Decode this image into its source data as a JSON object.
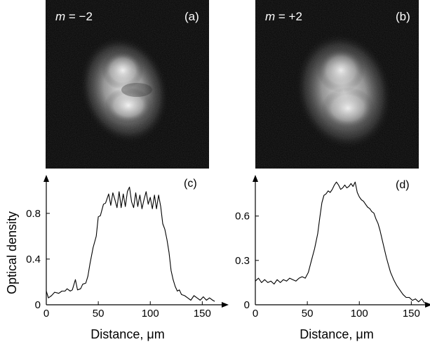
{
  "panels_images": [
    {
      "m_symbol": "m",
      "m_value": " = −2",
      "label": "(a)"
    },
    {
      "m_symbol": "m",
      "m_value": " = +2",
      "label": "(b)"
    }
  ],
  "chart_data": [
    {
      "type": "line",
      "panel_label": "(c)",
      "xlabel": "Distance, μm",
      "ylabel": "Optical density",
      "xlim": [
        0,
        170
      ],
      "ylim": [
        0,
        1.1
      ],
      "xticks": [
        0,
        50,
        100,
        150
      ],
      "yticks": [
        0,
        0.4,
        0.8
      ],
      "ytick_labels": [
        "0",
        "0.4",
        "0.8"
      ],
      "x": [
        0,
        2,
        5,
        8,
        12,
        15,
        18,
        20,
        23,
        25,
        28,
        30,
        33,
        35,
        38,
        40,
        42,
        45,
        48,
        50,
        52,
        55,
        57,
        60,
        62,
        64,
        66,
        68,
        70,
        72,
        74,
        76,
        78,
        80,
        82,
        84,
        86,
        88,
        90,
        92,
        94,
        96,
        98,
        100,
        102,
        104,
        106,
        108,
        110,
        112,
        114,
        116,
        118,
        120,
        122,
        124,
        126,
        128,
        130,
        133,
        136,
        139,
        142,
        145,
        148,
        151,
        154,
        157,
        160,
        162
      ],
      "y": [
        0.12,
        0.06,
        0.08,
        0.11,
        0.1,
        0.12,
        0.12,
        0.14,
        0.12,
        0.13,
        0.22,
        0.13,
        0.14,
        0.18,
        0.19,
        0.25,
        0.36,
        0.5,
        0.6,
        0.77,
        0.78,
        0.88,
        0.89,
        0.97,
        0.87,
        0.98,
        0.92,
        0.85,
        0.99,
        0.85,
        0.97,
        0.86,
        0.99,
        1.03,
        0.9,
        0.85,
        0.98,
        0.86,
        0.96,
        0.84,
        0.92,
        0.99,
        0.88,
        0.94,
        0.84,
        0.96,
        0.84,
        0.96,
        0.86,
        0.71,
        0.66,
        0.57,
        0.46,
        0.3,
        0.22,
        0.16,
        0.12,
        0.13,
        0.09,
        0.08,
        0.06,
        0.04,
        0.08,
        0.06,
        0.04,
        0.07,
        0.04,
        0.06,
        0.04,
        0.03
      ]
    },
    {
      "type": "line",
      "panel_label": "(d)",
      "xlabel": "Distance, μm",
      "ylabel": "",
      "xlim": [
        0,
        170
      ],
      "ylim": [
        0,
        0.85
      ],
      "xticks": [
        0,
        50,
        100,
        150
      ],
      "yticks": [
        0,
        0.3,
        0.6
      ],
      "ytick_labels": [
        "0",
        "0.3",
        "0.6"
      ],
      "x": [
        0,
        3,
        6,
        9,
        12,
        15,
        18,
        21,
        24,
        27,
        30,
        33,
        36,
        39,
        42,
        45,
        48,
        51,
        54,
        57,
        60,
        62,
        64,
        66,
        68,
        70,
        72,
        74,
        76,
        78,
        80,
        82,
        84,
        86,
        88,
        90,
        92,
        94,
        96,
        98,
        100,
        102,
        104,
        106,
        108,
        110,
        112,
        114,
        116,
        118,
        120,
        122,
        124,
        126,
        128,
        130,
        133,
        136,
        139,
        142,
        145,
        148,
        151,
        154,
        157,
        160,
        163
      ],
      "y": [
        0.16,
        0.18,
        0.15,
        0.17,
        0.15,
        0.16,
        0.14,
        0.17,
        0.15,
        0.17,
        0.16,
        0.18,
        0.17,
        0.16,
        0.18,
        0.19,
        0.18,
        0.22,
        0.3,
        0.38,
        0.48,
        0.59,
        0.69,
        0.74,
        0.75,
        0.77,
        0.76,
        0.78,
        0.81,
        0.83,
        0.81,
        0.78,
        0.79,
        0.81,
        0.79,
        0.8,
        0.82,
        0.8,
        0.83,
        0.76,
        0.73,
        0.71,
        0.7,
        0.68,
        0.66,
        0.65,
        0.63,
        0.62,
        0.58,
        0.55,
        0.5,
        0.44,
        0.38,
        0.32,
        0.27,
        0.22,
        0.17,
        0.13,
        0.1,
        0.07,
        0.05,
        0.05,
        0.03,
        0.04,
        0.02,
        0.04,
        0.01
      ]
    }
  ]
}
